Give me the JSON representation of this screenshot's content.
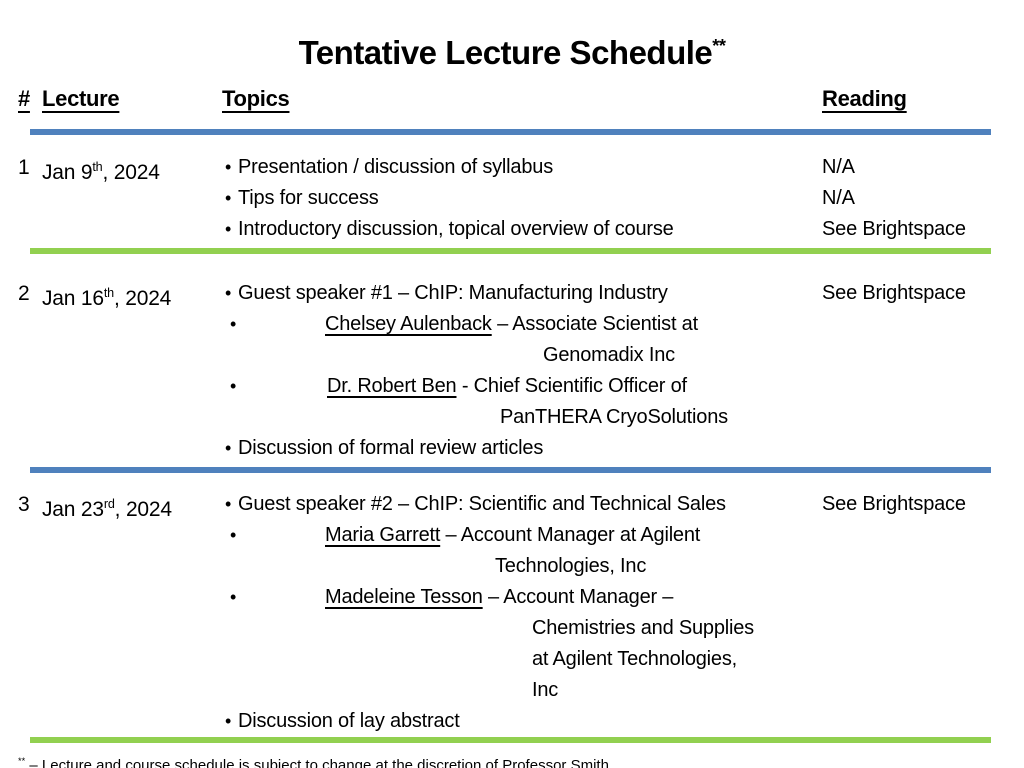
{
  "title": {
    "text": "Tentative Lecture Schedule",
    "sup": "**"
  },
  "header": {
    "num": "#",
    "lecture": "Lecture",
    "topics": "Topics",
    "reading": "Reading"
  },
  "colors": {
    "blue": "#4F81BD",
    "green": "#92D050",
    "text": "#000000",
    "background": "#FFFFFF"
  },
  "glyphs": {
    "bullet": "•"
  },
  "rows": [
    {
      "num": "1",
      "date": {
        "pre": "Jan 9",
        "sup": "th",
        "post": ", 2024"
      },
      "topics": [
        {
          "bullet": true,
          "bi": 3,
          "ti": 16,
          "segs": [
            {
              "t": "Presentation / discussion of syllabus"
            }
          ]
        },
        {
          "bullet": true,
          "bi": 3,
          "ti": 16,
          "segs": [
            {
              "t": "Tips for success"
            }
          ]
        },
        {
          "bullet": true,
          "bi": 3,
          "ti": 16,
          "segs": [
            {
              "t": "Introductory discussion, topical overview of course"
            }
          ]
        }
      ],
      "readings": [
        "N/A",
        "N/A",
        "See Brightspace"
      ],
      "rule_after": "green"
    },
    {
      "num": "2",
      "date": {
        "pre": "Jan 16",
        "sup": "th",
        "post": ", 2024"
      },
      "topics": [
        {
          "bullet": true,
          "bi": 3,
          "ti": 16,
          "segs": [
            {
              "t": "Guest speaker #1 – ChIP: Manufacturing Industry"
            }
          ]
        },
        {
          "bullet": true,
          "bi": 8,
          "ti": 103,
          "segs": [
            {
              "t": "Chelsey Aulenback",
              "u": true
            },
            {
              "t": " – Associate Scientist at"
            }
          ]
        },
        {
          "bullet": false,
          "ti": 321,
          "segs": [
            {
              "t": "Genomadix Inc"
            }
          ]
        },
        {
          "bullet": true,
          "bi": 8,
          "ti": 105,
          "segs": [
            {
              "t": "Dr. Robert Ben",
              "u": true
            },
            {
              "t": " - Chief Scientific Officer of"
            }
          ]
        },
        {
          "bullet": false,
          "ti": 278,
          "segs": [
            {
              "t": "PanTHERA CryoSolutions"
            }
          ]
        },
        {
          "bullet": true,
          "bi": 3,
          "ti": 16,
          "segs": [
            {
              "t": "Discussion of formal review articles"
            }
          ]
        }
      ],
      "readings": [
        "See Brightspace"
      ],
      "rule_after": "blue"
    },
    {
      "num": "3",
      "date": {
        "pre": "Jan 23",
        "sup": "rd",
        "post": ", 2024"
      },
      "topics": [
        {
          "bullet": true,
          "bi": 3,
          "ti": 16,
          "segs": [
            {
              "t": "Guest speaker #2 – ChIP: Scientific and Technical Sales"
            }
          ]
        },
        {
          "bullet": true,
          "bi": 8,
          "ti": 103,
          "segs": [
            {
              "t": "Maria Garrett",
              "u": true
            },
            {
              "t": " – Account Manager at Agilent"
            }
          ]
        },
        {
          "bullet": false,
          "ti": 273,
          "segs": [
            {
              "t": "Technologies, Inc"
            }
          ]
        },
        {
          "bullet": true,
          "bi": 8,
          "ti": 103,
          "segs": [
            {
              "t": "Madeleine Tesson",
              "u": true
            },
            {
              "t": " – Account Manager –"
            }
          ]
        },
        {
          "bullet": false,
          "ti": 310,
          "segs": [
            {
              "t": "Chemistries and Supplies"
            }
          ]
        },
        {
          "bullet": false,
          "ti": 310,
          "segs": [
            {
              "t": "at Agilent Technologies,"
            }
          ]
        },
        {
          "bullet": false,
          "ti": 310,
          "segs": [
            {
              "t": "Inc"
            }
          ]
        },
        {
          "bullet": true,
          "bi": 3,
          "ti": 16,
          "segs": [
            {
              "t": "Discussion of lay abstract"
            }
          ]
        }
      ],
      "readings": [
        "See Brightspace"
      ],
      "rule_after": "green"
    }
  ],
  "footnote": {
    "sup": "**",
    "text": " – Lecture and course schedule is subject to change at the discretion of Professor Smith"
  }
}
